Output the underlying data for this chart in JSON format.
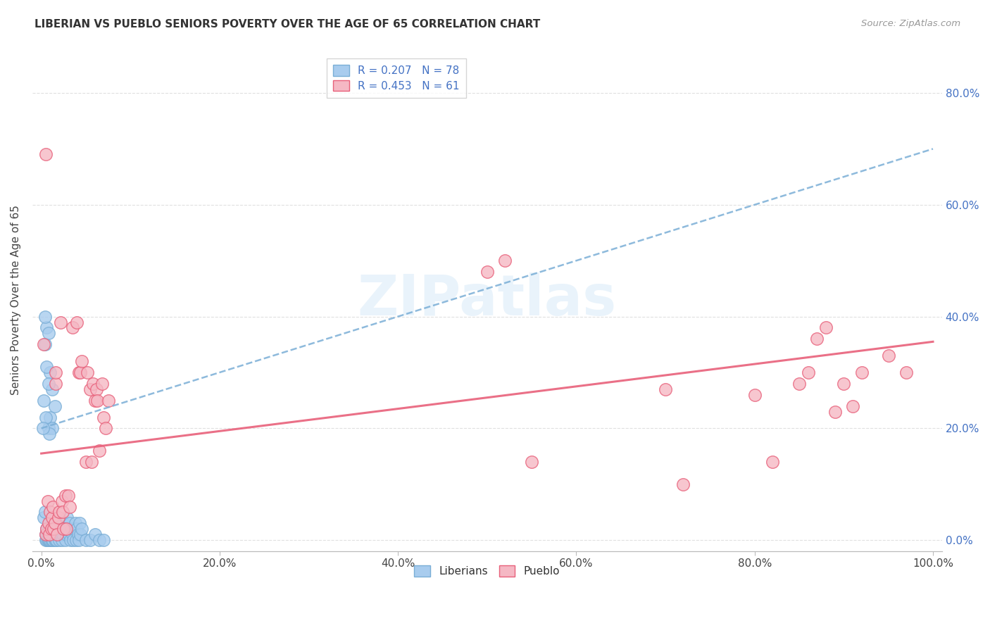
{
  "title": "LIBERIAN VS PUEBLO SENIORS POVERTY OVER THE AGE OF 65 CORRELATION CHART",
  "source": "Source: ZipAtlas.com",
  "ylabel": "Seniors Poverty Over the Age of 65",
  "R1": 0.207,
  "N1": 78,
  "R2": 0.453,
  "N2": 61,
  "legend_label1": "Liberians",
  "legend_label2": "Pueblo",
  "color_blue": "#A8CCEE",
  "color_pink": "#F5B8C4",
  "trendline_blue": "#7AAED6",
  "trendline_pink": "#E8607A",
  "watermark": "ZIPatlas",
  "blue_trendline_x0": 0.0,
  "blue_trendline_y0": 0.2,
  "blue_trendline_x1": 1.0,
  "blue_trendline_y1": 0.7,
  "pink_trendline_x0": 0.0,
  "pink_trendline_y0": 0.155,
  "pink_trendline_x1": 1.0,
  "pink_trendline_y1": 0.355,
  "xlim": [
    0.0,
    1.0
  ],
  "ylim": [
    0.0,
    0.88
  ],
  "x_ticks": [
    0.0,
    0.2,
    0.4,
    0.6,
    0.8,
    1.0
  ],
  "y_ticks": [
    0.0,
    0.2,
    0.4,
    0.6,
    0.8
  ],
  "blue_points": [
    [
      0.005,
      0.0
    ],
    [
      0.005,
      0.01
    ],
    [
      0.006,
      0.0
    ],
    [
      0.006,
      0.02
    ],
    [
      0.007,
      0.0
    ],
    [
      0.007,
      0.01
    ],
    [
      0.008,
      0.0
    ],
    [
      0.008,
      0.02
    ],
    [
      0.009,
      0.0
    ],
    [
      0.009,
      0.03
    ],
    [
      0.01,
      0.0
    ],
    [
      0.01,
      0.01
    ],
    [
      0.011,
      0.0
    ],
    [
      0.011,
      0.02
    ],
    [
      0.012,
      0.0
    ],
    [
      0.012,
      0.01
    ],
    [
      0.013,
      0.0
    ],
    [
      0.013,
      0.02
    ],
    [
      0.014,
      0.01
    ],
    [
      0.014,
      0.03
    ],
    [
      0.015,
      0.0
    ],
    [
      0.015,
      0.02
    ],
    [
      0.016,
      0.01
    ],
    [
      0.016,
      0.0
    ],
    [
      0.017,
      0.02
    ],
    [
      0.017,
      0.0
    ],
    [
      0.018,
      0.03
    ],
    [
      0.019,
      0.01
    ],
    [
      0.02,
      0.02
    ],
    [
      0.02,
      0.0
    ],
    [
      0.021,
      0.01
    ],
    [
      0.022,
      0.02
    ],
    [
      0.023,
      0.0
    ],
    [
      0.024,
      0.01
    ],
    [
      0.025,
      0.03
    ],
    [
      0.026,
      0.02
    ],
    [
      0.027,
      0.0
    ],
    [
      0.028,
      0.01
    ],
    [
      0.029,
      0.04
    ],
    [
      0.03,
      0.02
    ],
    [
      0.031,
      0.01
    ],
    [
      0.032,
      0.03
    ],
    [
      0.033,
      0.0
    ],
    [
      0.034,
      0.02
    ],
    [
      0.035,
      0.01
    ],
    [
      0.036,
      0.0
    ],
    [
      0.037,
      0.02
    ],
    [
      0.038,
      0.03
    ],
    [
      0.039,
      0.0
    ],
    [
      0.04,
      0.02
    ],
    [
      0.041,
      0.01
    ],
    [
      0.042,
      0.0
    ],
    [
      0.043,
      0.03
    ],
    [
      0.044,
      0.01
    ],
    [
      0.045,
      0.02
    ],
    [
      0.05,
      0.0
    ],
    [
      0.055,
      0.0
    ],
    [
      0.06,
      0.01
    ],
    [
      0.065,
      0.0
    ],
    [
      0.07,
      0.0
    ],
    [
      0.003,
      0.04
    ],
    [
      0.004,
      0.05
    ],
    [
      0.008,
      0.2
    ],
    [
      0.01,
      0.22
    ],
    [
      0.015,
      0.24
    ],
    [
      0.012,
      0.27
    ],
    [
      0.01,
      0.3
    ],
    [
      0.008,
      0.28
    ],
    [
      0.006,
      0.31
    ],
    [
      0.004,
      0.35
    ],
    [
      0.006,
      0.38
    ],
    [
      0.004,
      0.4
    ],
    [
      0.008,
      0.37
    ],
    [
      0.012,
      0.2
    ],
    [
      0.009,
      0.19
    ],
    [
      0.005,
      0.22
    ],
    [
      0.003,
      0.25
    ],
    [
      0.002,
      0.2
    ]
  ],
  "pink_points": [
    [
      0.005,
      0.69
    ],
    [
      0.003,
      0.35
    ],
    [
      0.005,
      0.01
    ],
    [
      0.006,
      0.02
    ],
    [
      0.007,
      0.07
    ],
    [
      0.008,
      0.03
    ],
    [
      0.009,
      0.01
    ],
    [
      0.01,
      0.05
    ],
    [
      0.011,
      0.02
    ],
    [
      0.012,
      0.04
    ],
    [
      0.013,
      0.06
    ],
    [
      0.014,
      0.02
    ],
    [
      0.015,
      0.03
    ],
    [
      0.016,
      0.28
    ],
    [
      0.016,
      0.3
    ],
    [
      0.018,
      0.01
    ],
    [
      0.019,
      0.04
    ],
    [
      0.02,
      0.05
    ],
    [
      0.022,
      0.39
    ],
    [
      0.023,
      0.07
    ],
    [
      0.024,
      0.05
    ],
    [
      0.025,
      0.02
    ],
    [
      0.027,
      0.08
    ],
    [
      0.028,
      0.02
    ],
    [
      0.03,
      0.08
    ],
    [
      0.032,
      0.06
    ],
    [
      0.035,
      0.38
    ],
    [
      0.04,
      0.39
    ],
    [
      0.042,
      0.3
    ],
    [
      0.044,
      0.3
    ],
    [
      0.045,
      0.32
    ],
    [
      0.05,
      0.14
    ],
    [
      0.052,
      0.3
    ],
    [
      0.055,
      0.27
    ],
    [
      0.056,
      0.14
    ],
    [
      0.058,
      0.28
    ],
    [
      0.06,
      0.25
    ],
    [
      0.062,
      0.27
    ],
    [
      0.063,
      0.25
    ],
    [
      0.065,
      0.16
    ],
    [
      0.068,
      0.28
    ],
    [
      0.07,
      0.22
    ],
    [
      0.072,
      0.2
    ],
    [
      0.075,
      0.25
    ],
    [
      0.5,
      0.48
    ],
    [
      0.52,
      0.5
    ],
    [
      0.55,
      0.14
    ],
    [
      0.7,
      0.27
    ],
    [
      0.72,
      0.1
    ],
    [
      0.8,
      0.26
    ],
    [
      0.82,
      0.14
    ],
    [
      0.85,
      0.28
    ],
    [
      0.86,
      0.3
    ],
    [
      0.87,
      0.36
    ],
    [
      0.88,
      0.38
    ],
    [
      0.89,
      0.23
    ],
    [
      0.9,
      0.28
    ],
    [
      0.91,
      0.24
    ],
    [
      0.92,
      0.3
    ],
    [
      0.95,
      0.33
    ],
    [
      0.97,
      0.3
    ]
  ]
}
